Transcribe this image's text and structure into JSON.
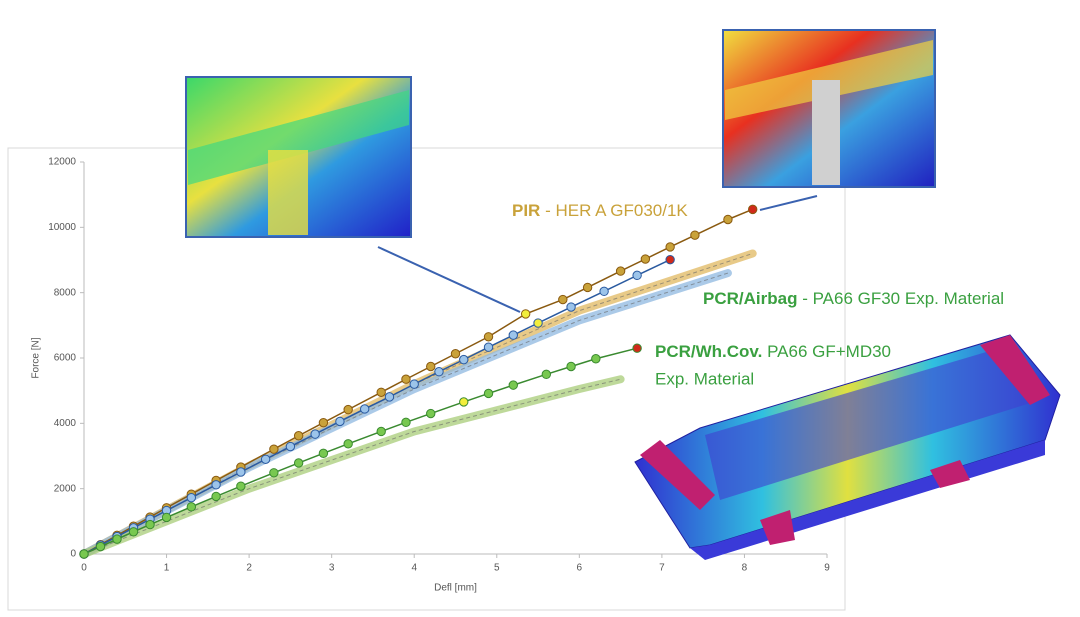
{
  "chart_data": {
    "type": "line",
    "x_label": "Defl [mm]",
    "y_label": "Force [N]",
    "xlim": [
      0,
      9
    ],
    "xticks": [
      0,
      1,
      2,
      3,
      4,
      5,
      6,
      7,
      8,
      9
    ],
    "ylim": [
      0,
      12000
    ],
    "yticks": [
      0,
      2000,
      4000,
      6000,
      8000,
      10000,
      12000
    ],
    "series": [
      {
        "style": "markers",
        "color": "#8a5a10",
        "marker_color": "#c9a23a",
        "highlight": 18,
        "highlight_color": "#f2ee3c",
        "end_color": "#d02a1a",
        "x": [
          0,
          0.2,
          0.4,
          0.6,
          0.8,
          1.0,
          1.3,
          1.6,
          1.9,
          2.3,
          2.6,
          2.9,
          3.2,
          3.6,
          3.9,
          4.2,
          4.5,
          4.9,
          5.35,
          5.8,
          6.1,
          6.5,
          6.8,
          7.1,
          7.4,
          7.8,
          8.1
        ],
        "values": [
          0,
          285,
          570,
          850,
          1130,
          1415,
          1830,
          2250,
          2660,
          3210,
          3620,
          4020,
          4420,
          4950,
          5350,
          5740,
          6130,
          6650,
          7350,
          7790,
          8160,
          8660,
          9030,
          9400,
          9760,
          10240,
          10550
        ]
      },
      {
        "style": "markers",
        "color": "#2a5aa0",
        "marker_color": "#9cc4ea",
        "highlight": 20,
        "highlight_color": "#f2ee3c",
        "end_color": "#d02a1a",
        "x": [
          0,
          0.2,
          0.4,
          0.6,
          0.8,
          1.0,
          1.3,
          1.6,
          1.9,
          2.2,
          2.5,
          2.8,
          3.1,
          3.4,
          3.7,
          4.0,
          4.3,
          4.6,
          4.9,
          5.2,
          5.5,
          5.9,
          6.3,
          6.7,
          7.1
        ],
        "values": [
          0,
          268,
          534,
          800,
          1066,
          1330,
          1725,
          2118,
          2510,
          2900,
          3290,
          3670,
          4058,
          4440,
          4810,
          5200,
          5580,
          5950,
          6330,
          6700,
          7070,
          7560,
          8040,
          8530,
          9010
        ]
      },
      {
        "style": "markers",
        "color": "#3a8a30",
        "marker_color": "#78c850",
        "highlight": 16,
        "highlight_color": "#f2ee3c",
        "end_color": "#d02a1a",
        "x": [
          0,
          0.2,
          0.4,
          0.6,
          0.8,
          1.0,
          1.3,
          1.6,
          1.9,
          2.3,
          2.6,
          2.9,
          3.2,
          3.6,
          3.9,
          4.2,
          4.6,
          4.9,
          5.2,
          5.6,
          5.9,
          6.2,
          6.7
        ],
        "values": [
          0,
          229,
          455,
          680,
          900,
          1120,
          1444,
          1763,
          2077,
          2486,
          2787,
          3082,
          3373,
          3751,
          4030,
          4300,
          4655,
          4915,
          5170,
          5500,
          5740,
          5977,
          6300
        ]
      },
      {
        "style": "band",
        "color": "#e0b860",
        "x": [
          0,
          2,
          4,
          6,
          8.1
        ],
        "values": [
          0,
          2700,
          5200,
          7450,
          9200
        ]
      },
      {
        "style": "band",
        "color": "#8fb8e0",
        "x": [
          0,
          2,
          4,
          6,
          7.8
        ],
        "values": [
          0,
          2650,
          5050,
          7150,
          8600
        ]
      },
      {
        "style": "band",
        "color": "#a8cc78",
        "x": [
          0,
          2,
          4,
          6,
          6.5
        ],
        "values": [
          0,
          2000,
          3750,
          5050,
          5350
        ]
      }
    ],
    "annotations": [
      {
        "bold": "PIR",
        "text": " - HER A GF030/1K",
        "color": "#c9a23a"
      },
      {
        "bold": "PCR/Airbag",
        "text": " - PA66 GF30 Exp. Material",
        "color": "#3aa040"
      },
      {
        "bold": "PCR/Wh.Cov.",
        "text": " PA66 GF+MD30",
        "text2": "Exp. Material",
        "color": "#3aa040"
      }
    ]
  }
}
